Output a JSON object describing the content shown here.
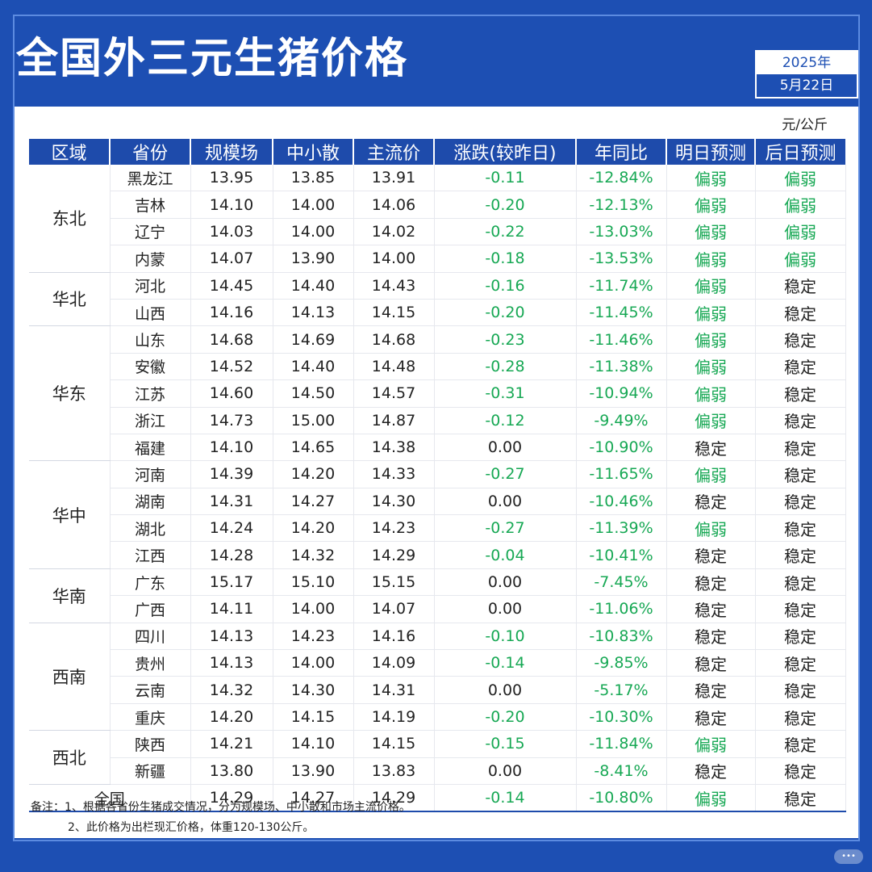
{
  "title": "全国外三元生猪价格",
  "date": {
    "year": "2025年",
    "day": "5月22日"
  },
  "unit": "元/公斤",
  "headers": [
    "区域",
    "省份",
    "规模场",
    "中小散",
    "主流价",
    "涨跌(较昨日)",
    "年同比",
    "明日预测",
    "后日预测"
  ],
  "regions": [
    {
      "name": "东北",
      "rows": [
        {
          "province": "黑龙江",
          "large": "13.95",
          "small": "13.85",
          "main": "13.91",
          "change": "-0.11",
          "yoy": "-12.84%",
          "tomorrow": "偏弱",
          "after": "偏弱"
        },
        {
          "province": "吉林",
          "large": "14.10",
          "small": "14.00",
          "main": "14.06",
          "change": "-0.20",
          "yoy": "-12.13%",
          "tomorrow": "偏弱",
          "after": "偏弱"
        },
        {
          "province": "辽宁",
          "large": "14.03",
          "small": "14.00",
          "main": "14.02",
          "change": "-0.22",
          "yoy": "-13.03%",
          "tomorrow": "偏弱",
          "after": "偏弱"
        },
        {
          "province": "内蒙",
          "large": "14.07",
          "small": "13.90",
          "main": "14.00",
          "change": "-0.18",
          "yoy": "-13.53%",
          "tomorrow": "偏弱",
          "after": "偏弱"
        }
      ]
    },
    {
      "name": "华北",
      "rows": [
        {
          "province": "河北",
          "large": "14.45",
          "small": "14.40",
          "main": "14.43",
          "change": "-0.16",
          "yoy": "-11.74%",
          "tomorrow": "偏弱",
          "after": "稳定"
        },
        {
          "province": "山西",
          "large": "14.16",
          "small": "14.13",
          "main": "14.15",
          "change": "-0.20",
          "yoy": "-11.45%",
          "tomorrow": "偏弱",
          "after": "稳定"
        }
      ]
    },
    {
      "name": "华东",
      "rows": [
        {
          "province": "山东",
          "large": "14.68",
          "small": "14.69",
          "main": "14.68",
          "change": "-0.23",
          "yoy": "-11.46%",
          "tomorrow": "偏弱",
          "after": "稳定"
        },
        {
          "province": "安徽",
          "large": "14.52",
          "small": "14.40",
          "main": "14.48",
          "change": "-0.28",
          "yoy": "-11.38%",
          "tomorrow": "偏弱",
          "after": "稳定"
        },
        {
          "province": "江苏",
          "large": "14.60",
          "small": "14.50",
          "main": "14.57",
          "change": "-0.31",
          "yoy": "-10.94%",
          "tomorrow": "偏弱",
          "after": "稳定"
        },
        {
          "province": "浙江",
          "large": "14.73",
          "small": "15.00",
          "main": "14.87",
          "change": "-0.12",
          "yoy": "-9.49%",
          "tomorrow": "偏弱",
          "after": "稳定"
        },
        {
          "province": "福建",
          "large": "14.10",
          "small": "14.65",
          "main": "14.38",
          "change": "0.00",
          "yoy": "-10.90%",
          "tomorrow": "稳定",
          "after": "稳定"
        }
      ]
    },
    {
      "name": "华中",
      "rows": [
        {
          "province": "河南",
          "large": "14.39",
          "small": "14.20",
          "main": "14.33",
          "change": "-0.27",
          "yoy": "-11.65%",
          "tomorrow": "偏弱",
          "after": "稳定"
        },
        {
          "province": "湖南",
          "large": "14.31",
          "small": "14.27",
          "main": "14.30",
          "change": "0.00",
          "yoy": "-10.46%",
          "tomorrow": "稳定",
          "after": "稳定"
        },
        {
          "province": "湖北",
          "large": "14.24",
          "small": "14.20",
          "main": "14.23",
          "change": "-0.27",
          "yoy": "-11.39%",
          "tomorrow": "偏弱",
          "after": "稳定"
        },
        {
          "province": "江西",
          "large": "14.28",
          "small": "14.32",
          "main": "14.29",
          "change": "-0.04",
          "yoy": "-10.41%",
          "tomorrow": "稳定",
          "after": "稳定"
        }
      ]
    },
    {
      "name": "华南",
      "rows": [
        {
          "province": "广东",
          "large": "15.17",
          "small": "15.10",
          "main": "15.15",
          "change": "0.00",
          "yoy": "-7.45%",
          "tomorrow": "稳定",
          "after": "稳定"
        },
        {
          "province": "广西",
          "large": "14.11",
          "small": "14.00",
          "main": "14.07",
          "change": "0.00",
          "yoy": "-11.06%",
          "tomorrow": "稳定",
          "after": "稳定"
        }
      ]
    },
    {
      "name": "西南",
      "rows": [
        {
          "province": "四川",
          "large": "14.13",
          "small": "14.23",
          "main": "14.16",
          "change": "-0.10",
          "yoy": "-10.83%",
          "tomorrow": "稳定",
          "after": "稳定"
        },
        {
          "province": "贵州",
          "large": "14.13",
          "small": "14.00",
          "main": "14.09",
          "change": "-0.14",
          "yoy": "-9.85%",
          "tomorrow": "稳定",
          "after": "稳定"
        },
        {
          "province": "云南",
          "large": "14.32",
          "small": "14.30",
          "main": "14.31",
          "change": "0.00",
          "yoy": "-5.17%",
          "tomorrow": "稳定",
          "after": "稳定"
        },
        {
          "province": "重庆",
          "large": "14.20",
          "small": "14.15",
          "main": "14.19",
          "change": "-0.20",
          "yoy": "-10.30%",
          "tomorrow": "稳定",
          "after": "稳定"
        }
      ]
    },
    {
      "name": "西北",
      "rows": [
        {
          "province": "陕西",
          "large": "14.21",
          "small": "14.10",
          "main": "14.15",
          "change": "-0.15",
          "yoy": "-11.84%",
          "tomorrow": "偏弱",
          "after": "稳定"
        },
        {
          "province": "新疆",
          "large": "13.80",
          "small": "13.90",
          "main": "13.83",
          "change": "0.00",
          "yoy": "-8.41%",
          "tomorrow": "稳定",
          "after": "稳定"
        }
      ]
    }
  ],
  "total": {
    "label": "全国",
    "large": "14.29",
    "small": "14.27",
    "main": "14.29",
    "change": "-0.14",
    "yoy": "-10.80%",
    "tomorrow": "偏弱",
    "after": "稳定"
  },
  "notes": [
    "备注：1、根据各省份生猪成交情况，分为规模场、中小散和市场主流价格。",
    "2、此价格为出栏现汇价格，体重120-130公斤。"
  ],
  "colors": {
    "brand_blue": "#1d4fb3",
    "header_blue": "#1e4bab",
    "green": "#17a854"
  }
}
